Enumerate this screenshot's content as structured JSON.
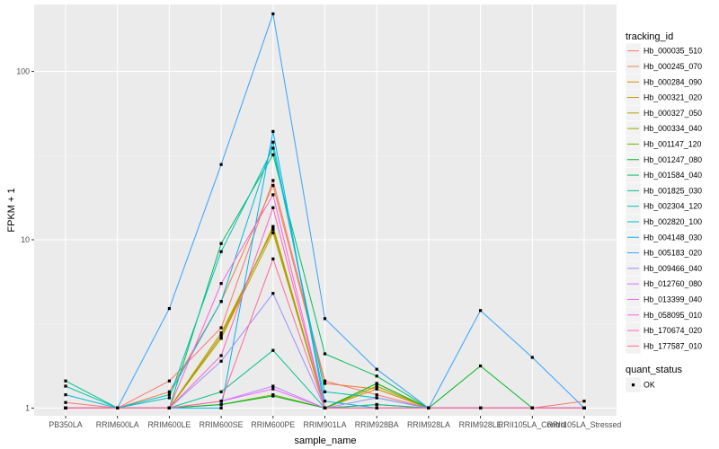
{
  "chart_data": {
    "type": "line",
    "xlabel": "sample_name",
    "ylabel": "FPKM + 1",
    "y_scale": "log10",
    "ylim": [
      0.9,
      250
    ],
    "y_ticks": [
      1,
      10,
      100
    ],
    "y_tick_labels": [
      "1",
      "10",
      "100"
    ],
    "categories": [
      "PB350LA",
      "RRIM600LA",
      "RRIM600LE",
      "RRIM600SE",
      "RRIM600PE",
      "RRIM901LA",
      "RRIM928BA",
      "RRIM928LA",
      "RRIM928LE",
      "RRII105LA_Control",
      "RRII105LA_Stressed"
    ],
    "legend": {
      "title": "tracking_id",
      "placement": "right"
    },
    "shape_legend": {
      "title": "quant_status",
      "items": [
        "OK"
      ]
    },
    "series": [
      {
        "name": "Hb_000035_510",
        "color": "#F8766D",
        "values": [
          1.08,
          1.0,
          1.45,
          3.0,
          22.5,
          1.45,
          1.2,
          1.0,
          1.0,
          1.0,
          1.1
        ]
      },
      {
        "name": "Hb_000245_070",
        "color": "#EE8043",
        "values": [
          1.0,
          1.0,
          1.25,
          4.3,
          21.0,
          1.4,
          1.3,
          1.0,
          1.0,
          1.0,
          1.0
        ]
      },
      {
        "name": "Hb_000284_090",
        "color": "#E08B00",
        "values": [
          1.0,
          1.0,
          1.0,
          2.6,
          12.0,
          1.0,
          1.35,
          1.0,
          1.0,
          1.0,
          1.0
        ]
      },
      {
        "name": "Hb_000321_020",
        "color": "#CD9600",
        "values": [
          1.0,
          1.0,
          1.0,
          2.8,
          11.5,
          1.0,
          1.3,
          1.0,
          1.0,
          1.0,
          1.0
        ]
      },
      {
        "name": "Hb_000327_050",
        "color": "#B79F00",
        "values": [
          1.0,
          1.0,
          1.0,
          2.6,
          11.0,
          1.0,
          1.4,
          1.0,
          1.0,
          1.0,
          1.0
        ]
      },
      {
        "name": "Hb_000334_040",
        "color": "#9AA800",
        "values": [
          1.0,
          1.0,
          1.0,
          2.7,
          11.8,
          1.0,
          1.35,
          1.0,
          1.0,
          1.0,
          1.0
        ]
      },
      {
        "name": "Hb_001147_120",
        "color": "#72B000",
        "values": [
          1.0,
          1.0,
          1.0,
          1.05,
          1.2,
          1.0,
          1.05,
          1.0,
          1.0,
          1.0,
          1.0
        ]
      },
      {
        "name": "Hb_001247_080",
        "color": "#00B81F",
        "values": [
          1.0,
          1.0,
          1.0,
          1.05,
          1.18,
          1.0,
          1.4,
          1.0,
          1.78,
          1.0,
          1.0
        ]
      },
      {
        "name": "Hb_001584_040",
        "color": "#00BD5C",
        "values": [
          1.0,
          1.0,
          1.0,
          9.5,
          32.0,
          2.1,
          1.55,
          1.0,
          1.0,
          1.0,
          1.0
        ]
      },
      {
        "name": "Hb_001825_030",
        "color": "#00C08B",
        "values": [
          1.45,
          1.0,
          1.0,
          1.25,
          2.2,
          1.0,
          1.05,
          1.0,
          1.0,
          1.0,
          1.0
        ]
      },
      {
        "name": "Hb_002304_120",
        "color": "#00C1B2",
        "values": [
          1.35,
          1.0,
          1.15,
          8.5,
          35.0,
          1.25,
          1.15,
          1.0,
          1.0,
          1.0,
          1.0
        ]
      },
      {
        "name": "Hb_002820_100",
        "color": "#00BCD6",
        "values": [
          1.2,
          1.0,
          1.2,
          4.3,
          38.0,
          1.1,
          1.0,
          1.0,
          1.0,
          1.0,
          1.0
        ]
      },
      {
        "name": "Hb_004148_030",
        "color": "#00B2F3",
        "values": [
          1.0,
          1.0,
          1.0,
          1.0,
          44.0,
          1.0,
          1.0,
          1.0,
          1.0,
          1.0,
          1.0
        ]
      },
      {
        "name": "Hb_005183_020",
        "color": "#35A2FF",
        "values": [
          1.0,
          1.0,
          3.9,
          28.0,
          220.0,
          3.4,
          1.7,
          1.0,
          3.8,
          2.0,
          1.0
        ]
      },
      {
        "name": "Hb_009466_040",
        "color": "#9590FF",
        "values": [
          1.0,
          1.0,
          1.0,
          1.9,
          4.8,
          1.0,
          1.15,
          1.0,
          1.0,
          1.0,
          1.0
        ]
      },
      {
        "name": "Hb_012760_080",
        "color": "#C77CFF",
        "values": [
          1.0,
          1.0,
          1.0,
          1.1,
          1.35,
          1.0,
          1.0,
          1.0,
          1.0,
          1.0,
          1.0
        ]
      },
      {
        "name": "Hb_013399_040",
        "color": "#E76BF3",
        "values": [
          1.0,
          1.0,
          1.0,
          1.1,
          1.3,
          1.0,
          1.0,
          1.0,
          1.0,
          1.0,
          1.0
        ]
      },
      {
        "name": "Hb_058095_010",
        "color": "#FA62DB",
        "values": [
          1.0,
          1.0,
          1.0,
          5.5,
          18.5,
          1.0,
          1.0,
          1.0,
          1.0,
          1.0,
          1.0
        ]
      },
      {
        "name": "Hb_170674_020",
        "color": "#FF62BC",
        "values": [
          1.0,
          1.0,
          1.0,
          2.05,
          15.5,
          1.0,
          1.0,
          1.0,
          1.0,
          1.0,
          1.0
        ]
      },
      {
        "name": "Hb_177587_010",
        "color": "#FF6C91",
        "values": [
          1.0,
          1.0,
          1.0,
          1.1,
          7.7,
          1.0,
          1.0,
          1.0,
          1.0,
          1.0,
          1.0
        ]
      }
    ]
  }
}
